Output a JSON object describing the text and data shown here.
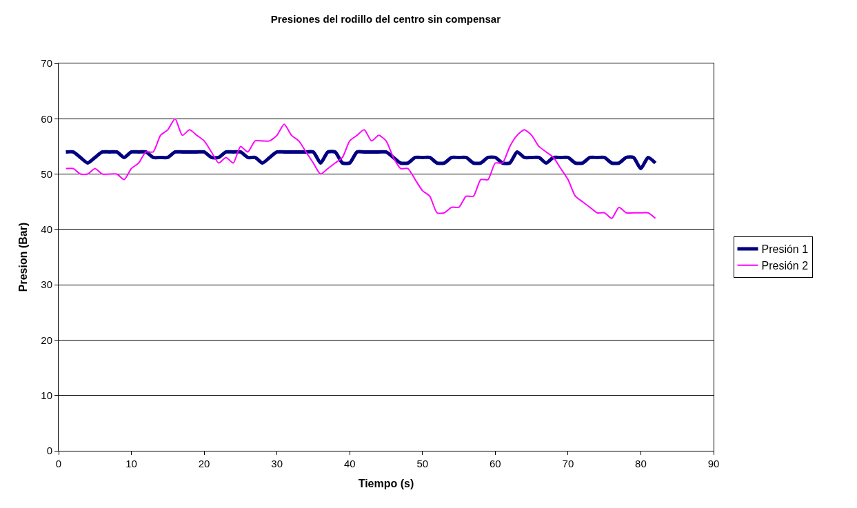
{
  "chart_data": {
    "type": "line",
    "title": "Presiones del rodillo del centro sin compensar",
    "xlabel": "Tiempo (s)",
    "ylabel": "Presion (Bar)",
    "x": [
      1,
      2,
      3,
      4,
      5,
      6,
      7,
      8,
      9,
      10,
      11,
      12,
      13,
      14,
      15,
      16,
      17,
      18,
      19,
      20,
      21,
      22,
      23,
      24,
      25,
      26,
      27,
      28,
      29,
      30,
      31,
      32,
      33,
      34,
      35,
      36,
      37,
      38,
      39,
      40,
      41,
      42,
      43,
      44,
      45,
      46,
      47,
      48,
      49,
      50,
      51,
      52,
      53,
      54,
      55,
      56,
      57,
      58,
      59,
      60,
      61,
      62,
      63,
      64,
      65,
      66,
      67,
      68,
      69,
      70,
      71,
      72,
      73,
      74,
      75,
      76,
      77,
      78,
      79,
      80,
      81,
      82
    ],
    "series": [
      {
        "name": "Presión 1",
        "color": "#000080",
        "values": [
          54,
          54,
          53,
          52,
          53,
          54,
          54,
          54,
          53,
          54,
          54,
          54,
          53,
          53,
          53,
          54,
          54,
          54,
          54,
          54,
          53,
          53,
          54,
          54,
          54,
          53,
          53,
          52,
          53,
          54,
          54,
          54,
          54,
          54,
          54,
          52,
          54,
          54,
          52,
          52,
          54,
          54,
          54,
          54,
          54,
          53,
          52,
          52,
          53,
          53,
          53,
          52,
          52,
          53,
          53,
          53,
          52,
          52,
          53,
          53,
          52,
          52,
          54,
          53,
          53,
          53,
          52,
          53,
          53,
          53,
          52,
          52,
          53,
          53,
          53,
          52,
          52,
          53,
          53,
          51,
          53,
          52
        ]
      },
      {
        "name": "Presión 2",
        "color": "#ff00ff",
        "values": [
          51,
          51,
          50,
          50,
          51,
          50,
          50,
          50,
          49,
          51,
          52,
          54,
          54,
          57,
          58,
          60,
          57,
          58,
          57,
          56,
          54,
          52,
          53,
          52,
          55,
          54,
          56,
          56,
          56,
          57,
          59,
          57,
          56,
          54,
          52,
          50,
          51,
          52,
          53,
          56,
          57,
          58,
          56,
          57,
          56,
          53,
          51,
          51,
          49,
          47,
          46,
          43,
          43,
          44,
          44,
          46,
          46,
          49,
          49,
          52,
          52,
          55,
          57,
          58,
          57,
          55,
          54,
          53,
          51,
          49,
          46,
          45,
          44,
          43,
          43,
          42,
          44,
          43,
          43,
          43,
          43,
          42
        ]
      }
    ],
    "xlim": [
      0,
      90
    ],
    "xticks": [
      0,
      10,
      20,
      30,
      40,
      50,
      60,
      70,
      80,
      90
    ],
    "ylim": [
      0,
      70
    ],
    "yticks": [
      0,
      10,
      20,
      30,
      40,
      50,
      60,
      70
    ],
    "grid": "y",
    "legend": "right",
    "marker": "none",
    "line_style": "solid"
  }
}
